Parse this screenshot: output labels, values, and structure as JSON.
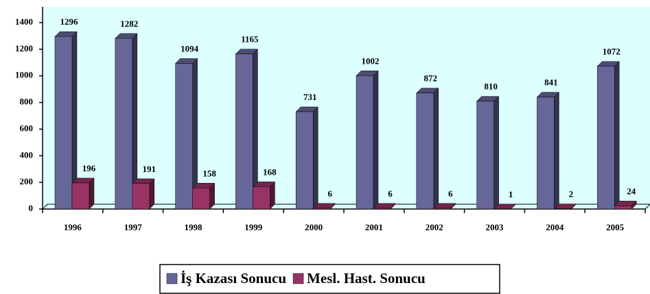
{
  "chart_data": {
    "type": "bar3d",
    "categories": [
      "1996",
      "1997",
      "1998",
      "1999",
      "2000",
      "2001",
      "2002",
      "2003",
      "2004",
      "2005"
    ],
    "series": [
      {
        "name": "İş Kazası Sonucu",
        "color": "#666699",
        "values": [
          1296,
          1282,
          1094,
          1165,
          731,
          1002,
          872,
          810,
          841,
          1072
        ]
      },
      {
        "name": "Mesl. Hast. Sonucu",
        "color": "#993366",
        "values": [
          196,
          191,
          158,
          168,
          6,
          6,
          6,
          1,
          2,
          24
        ]
      }
    ],
    "ylim": [
      0,
      1400
    ],
    "yticks": [
      0,
      200,
      400,
      600,
      800,
      1000,
      1200,
      1400
    ],
    "grid": false,
    "legend": "bottom"
  }
}
